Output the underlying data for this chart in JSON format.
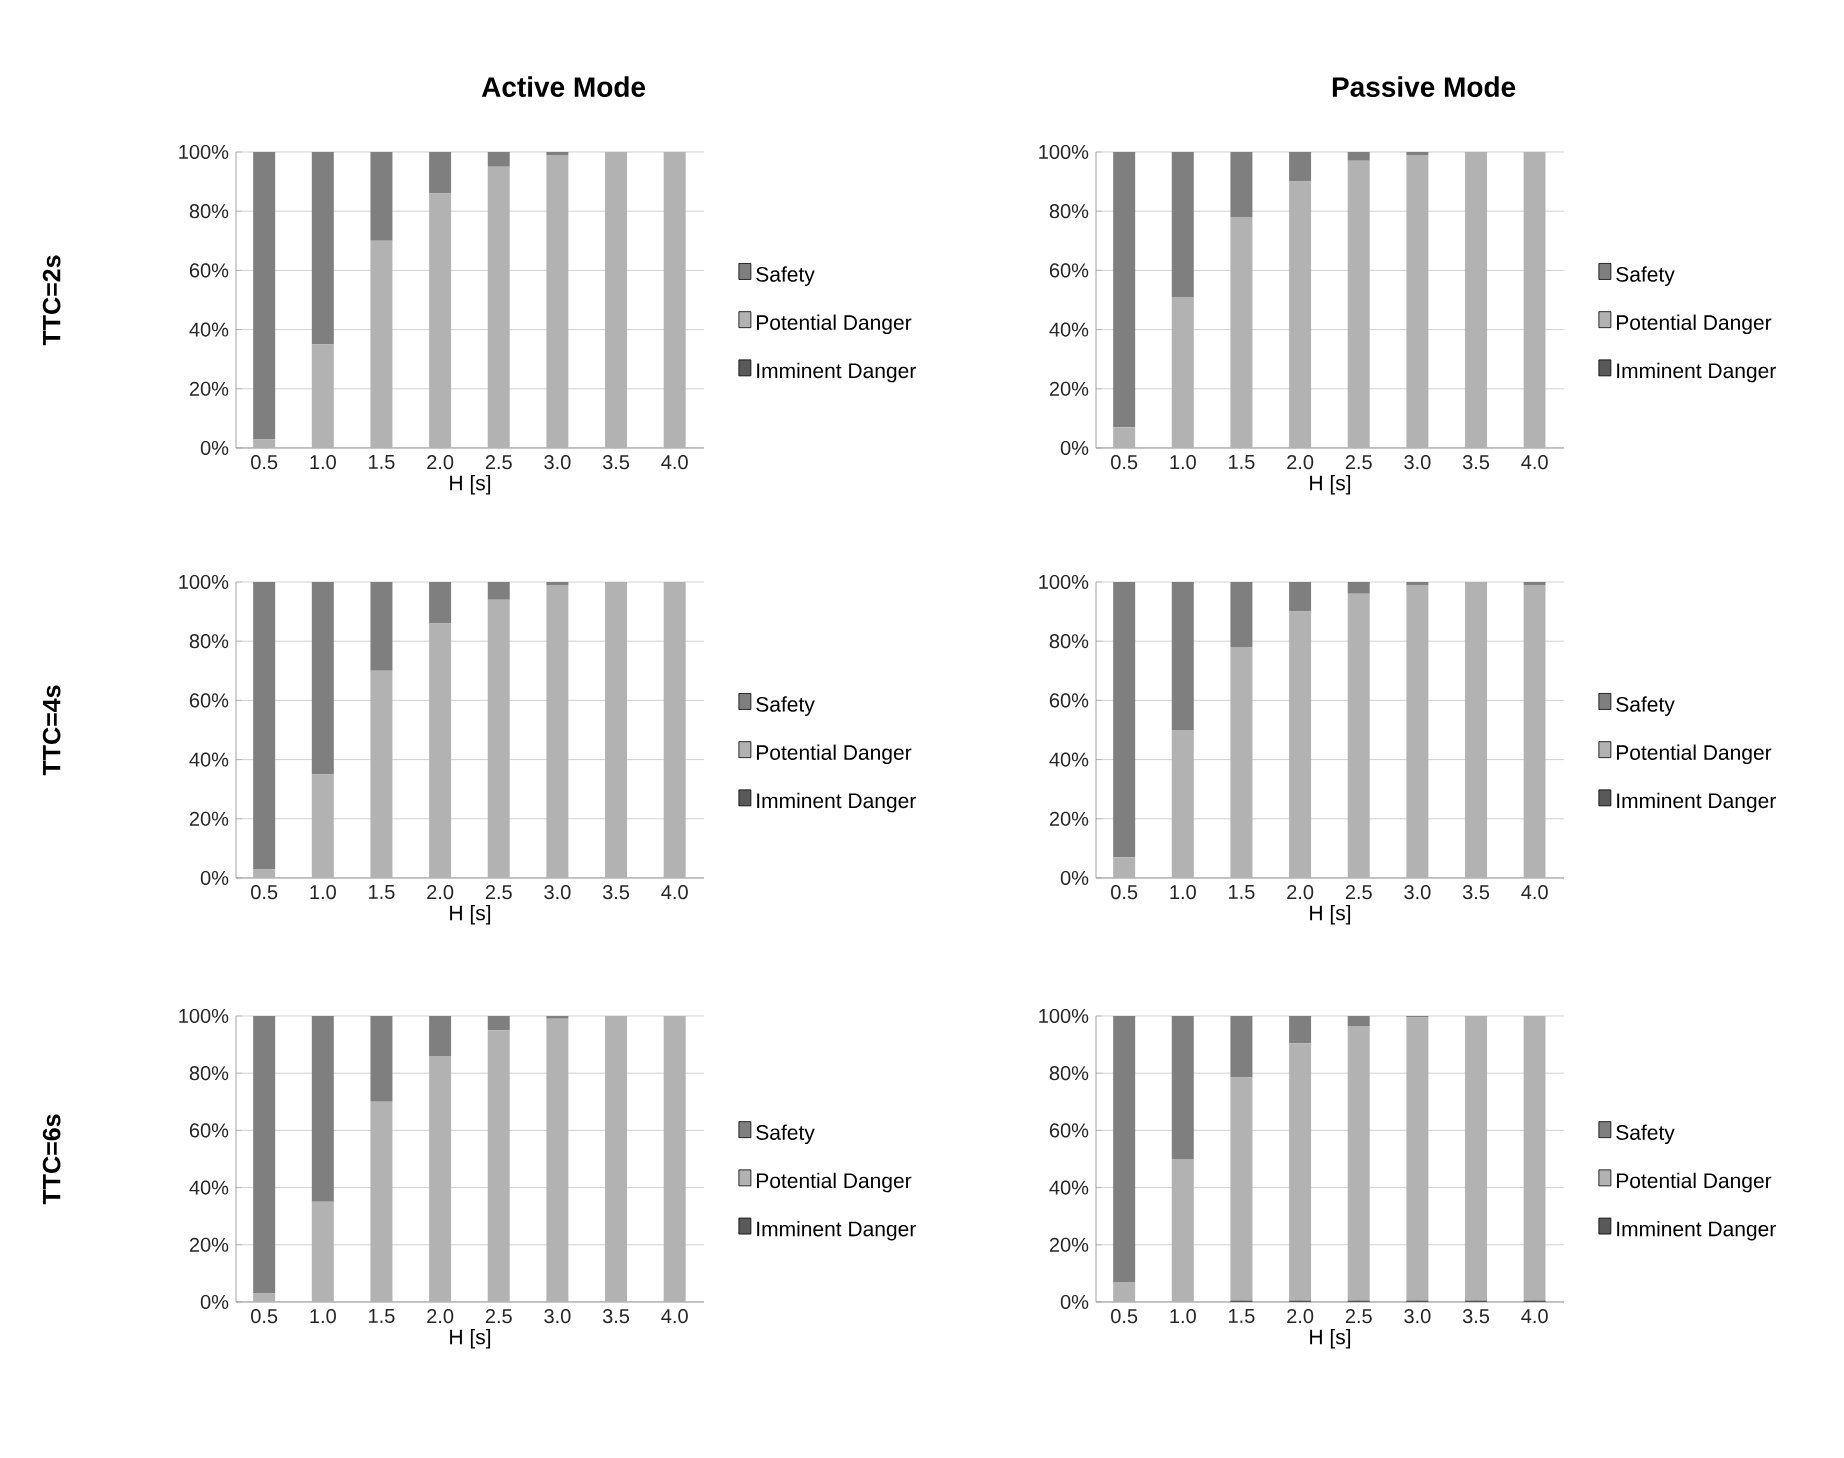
{
  "chart_data": [
    {
      "type": "bar",
      "stacked": true,
      "title": "Active Mode",
      "ylabel": "TTC=2s",
      "xlabel": "H [s]",
      "categories": [
        "0.5",
        "1.0",
        "1.5",
        "2.0",
        "2.5",
        "3.0",
        "3.5",
        "4.0"
      ],
      "ylim": [
        0,
        100
      ],
      "yticks": [
        {
          "value": 0,
          "label": "0%"
        },
        {
          "value": 20,
          "label": "20%"
        },
        {
          "value": 40,
          "label": "40%"
        },
        {
          "value": 60,
          "label": "60%"
        },
        {
          "value": 80,
          "label": "80%"
        },
        {
          "value": 100,
          "label": "100%"
        }
      ],
      "grid": "y",
      "legend": "right",
      "series": [
        {
          "name": "Imminent Danger",
          "color": "#595959",
          "values": [
            0,
            0,
            0,
            0,
            0,
            0,
            0,
            0
          ]
        },
        {
          "name": "Potential Danger",
          "color": "#b2b2b2",
          "values": [
            3,
            35,
            70,
            86,
            95,
            99,
            100,
            100
          ]
        },
        {
          "name": "Safety",
          "color": "#7f7f7f",
          "values": [
            97,
            65,
            30,
            14,
            5,
            1,
            0,
            0
          ]
        }
      ]
    },
    {
      "type": "bar",
      "stacked": true,
      "title": "Passive Mode",
      "xlabel": "H [s]",
      "categories": [
        "0.5",
        "1.0",
        "1.5",
        "2.0",
        "2.5",
        "3.0",
        "3.5",
        "4.0"
      ],
      "ylim": [
        0,
        100
      ],
      "yticks": [
        {
          "value": 0,
          "label": "0%"
        },
        {
          "value": 20,
          "label": "20%"
        },
        {
          "value": 40,
          "label": "40%"
        },
        {
          "value": 60,
          "label": "60%"
        },
        {
          "value": 80,
          "label": "80%"
        },
        {
          "value": 100,
          "label": "100%"
        }
      ],
      "grid": "y",
      "legend": "right",
      "series": [
        {
          "name": "Imminent Danger",
          "color": "#595959",
          "values": [
            0,
            0,
            0,
            0,
            0,
            0,
            0,
            0
          ]
        },
        {
          "name": "Potential Danger",
          "color": "#b2b2b2",
          "values": [
            7,
            51,
            78,
            90,
            97,
            99,
            100,
            100
          ]
        },
        {
          "name": "Safety",
          "color": "#7f7f7f",
          "values": [
            93,
            49,
            22,
            10,
            3,
            1,
            0,
            0
          ]
        }
      ]
    },
    {
      "type": "bar",
      "stacked": true,
      "ylabel": "TTC=4s",
      "xlabel": "H [s]",
      "categories": [
        "0.5",
        "1.0",
        "1.5",
        "2.0",
        "2.5",
        "3.0",
        "3.5",
        "4.0"
      ],
      "ylim": [
        0,
        100
      ],
      "yticks": [
        {
          "value": 0,
          "label": "0%"
        },
        {
          "value": 20,
          "label": "20%"
        },
        {
          "value": 40,
          "label": "40%"
        },
        {
          "value": 60,
          "label": "60%"
        },
        {
          "value": 80,
          "label": "80%"
        },
        {
          "value": 100,
          "label": "100%"
        }
      ],
      "grid": "y",
      "legend": "right",
      "series": [
        {
          "name": "Imminent Danger",
          "color": "#595959",
          "values": [
            0,
            0,
            0,
            0,
            0,
            0,
            0,
            0
          ]
        },
        {
          "name": "Potential Danger",
          "color": "#b2b2b2",
          "values": [
            3,
            35,
            70,
            86,
            94,
            99,
            100,
            100
          ]
        },
        {
          "name": "Safety",
          "color": "#7f7f7f",
          "values": [
            97,
            65,
            30,
            14,
            6,
            1,
            0,
            0
          ]
        }
      ]
    },
    {
      "type": "bar",
      "stacked": true,
      "xlabel": "H [s]",
      "categories": [
        "0.5",
        "1.0",
        "1.5",
        "2.0",
        "2.5",
        "3.0",
        "3.5",
        "4.0"
      ],
      "ylim": [
        0,
        100
      ],
      "yticks": [
        {
          "value": 0,
          "label": "0%"
        },
        {
          "value": 20,
          "label": "20%"
        },
        {
          "value": 40,
          "label": "40%"
        },
        {
          "value": 60,
          "label": "60%"
        },
        {
          "value": 80,
          "label": "80%"
        },
        {
          "value": 100,
          "label": "100%"
        }
      ],
      "grid": "y",
      "legend": "right",
      "series": [
        {
          "name": "Imminent Danger",
          "color": "#595959",
          "values": [
            0,
            0,
            0,
            0,
            0,
            0,
            0,
            0
          ]
        },
        {
          "name": "Potential Danger",
          "color": "#b2b2b2",
          "values": [
            7,
            50,
            78,
            90,
            96,
            99,
            100,
            99
          ]
        },
        {
          "name": "Safety",
          "color": "#7f7f7f",
          "values": [
            93,
            50,
            22,
            10,
            4,
            1,
            0,
            1
          ]
        }
      ]
    },
    {
      "type": "bar",
      "stacked": true,
      "ylabel": "TTC=6s",
      "xlabel": "H [s]",
      "categories": [
        "0.5",
        "1.0",
        "1.5",
        "2.0",
        "2.5",
        "3.0",
        "3.5",
        "4.0"
      ],
      "ylim": [
        0,
        100
      ],
      "yticks": [
        {
          "value": 0,
          "label": "0%"
        },
        {
          "value": 20,
          "label": "20%"
        },
        {
          "value": 40,
          "label": "40%"
        },
        {
          "value": 60,
          "label": "60%"
        },
        {
          "value": 80,
          "label": "80%"
        },
        {
          "value": 100,
          "label": "100%"
        }
      ],
      "grid": "y",
      "legend": "right",
      "series": [
        {
          "name": "Imminent Danger",
          "color": "#595959",
          "values": [
            0,
            0,
            0,
            0,
            0,
            0,
            0,
            0
          ]
        },
        {
          "name": "Potential Danger",
          "color": "#b2b2b2",
          "values": [
            3,
            35,
            70,
            86,
            95,
            99,
            100,
            100
          ]
        },
        {
          "name": "Safety",
          "color": "#7f7f7f",
          "values": [
            97,
            65,
            30,
            14,
            5,
            1,
            0,
            0
          ]
        }
      ]
    },
    {
      "type": "bar",
      "stacked": true,
      "xlabel": "H [s]",
      "categories": [
        "0.5",
        "1.0",
        "1.5",
        "2.0",
        "2.5",
        "3.0",
        "3.5",
        "4.0"
      ],
      "ylim": [
        0,
        100
      ],
      "yticks": [
        {
          "value": 0,
          "label": "0%"
        },
        {
          "value": 20,
          "label": "20%"
        },
        {
          "value": 40,
          "label": "40%"
        },
        {
          "value": 60,
          "label": "60%"
        },
        {
          "value": 80,
          "label": "80%"
        },
        {
          "value": 100,
          "label": "100%"
        }
      ],
      "grid": "y",
      "legend": "right",
      "series": [
        {
          "name": "Imminent Danger",
          "color": "#595959",
          "values": [
            0,
            0,
            0.5,
            0.5,
            0.5,
            0.5,
            0.5,
            0.5
          ]
        },
        {
          "name": "Potential Danger",
          "color": "#b2b2b2",
          "values": [
            7,
            50,
            78,
            90,
            96,
            99,
            99.5,
            99.5
          ]
        },
        {
          "name": "Safety",
          "color": "#7f7f7f",
          "values": [
            93,
            50,
            21.5,
            9.5,
            3.5,
            0.5,
            0,
            0
          ]
        }
      ]
    }
  ]
}
